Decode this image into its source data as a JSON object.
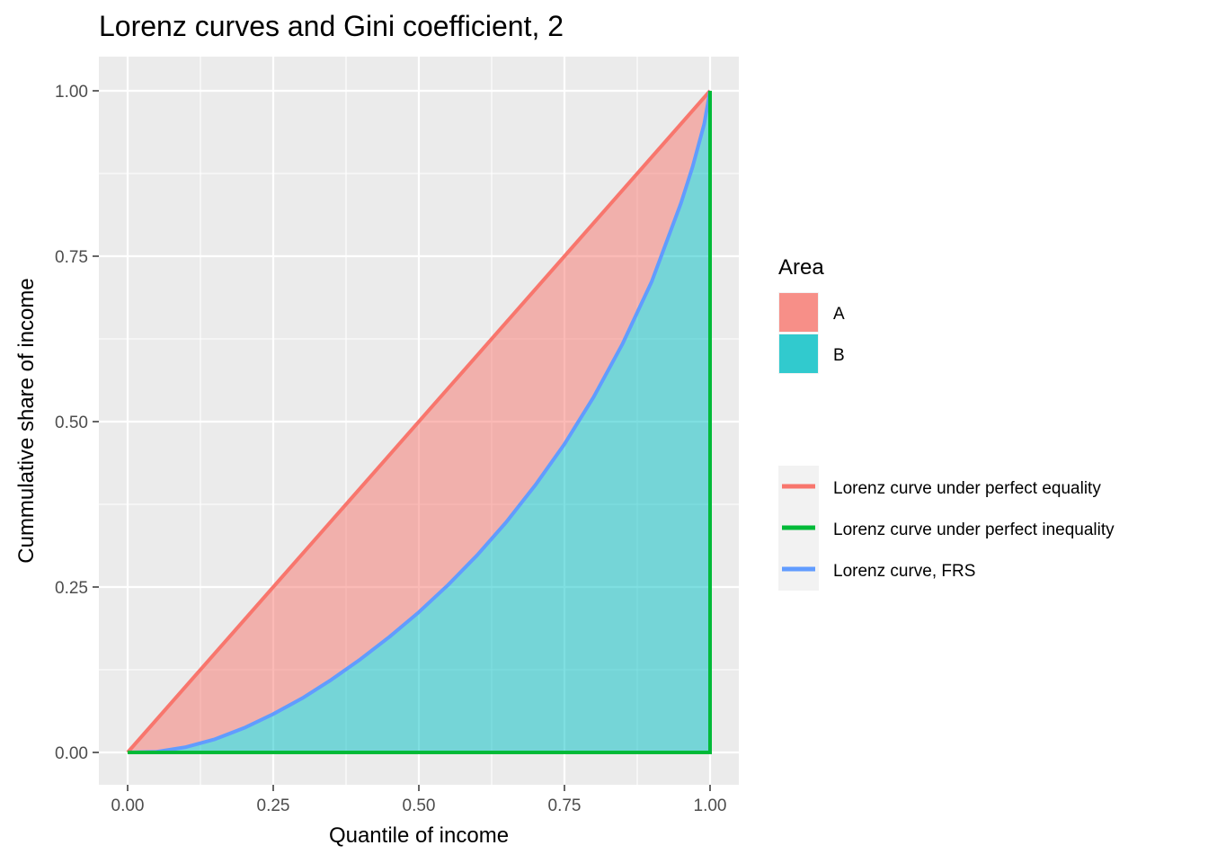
{
  "chart_data": {
    "type": "area",
    "title": "Lorenz curves and Gini coefficient, 2",
    "xlabel": "Quantile of income",
    "ylabel": "Cummulative share of income",
    "xlim": [
      0,
      1
    ],
    "ylim": [
      0,
      1
    ],
    "x_ticks": [
      "0.00",
      "0.25",
      "0.50",
      "0.75",
      "1.00"
    ],
    "y_ticks": [
      "0.00",
      "0.25",
      "0.50",
      "0.75",
      "1.00"
    ],
    "grid": true,
    "panel_background": "#ebebeb",
    "areas": {
      "title": "Area",
      "items": [
        {
          "name": "A",
          "color": "#f8766d"
        },
        {
          "name": "B",
          "color": "#00bfc4"
        }
      ]
    },
    "series": [
      {
        "name": "Lorenz curve under perfect equality",
        "color": "#f8766d",
        "x": [
          0,
          1
        ],
        "y": [
          0,
          1
        ]
      },
      {
        "name": "Lorenz curve under perfect inequality",
        "color": "#00ba38",
        "x": [
          0,
          1,
          1
        ],
        "y": [
          0,
          0,
          1
        ]
      },
      {
        "name": "Lorenz curve, FRS",
        "color": "#619cff",
        "x": [
          0,
          0.05,
          0.1,
          0.15,
          0.2,
          0.25,
          0.3,
          0.35,
          0.4,
          0.45,
          0.5,
          0.55,
          0.6,
          0.65,
          0.7,
          0.75,
          0.8,
          0.85,
          0.9,
          0.95,
          0.97,
          0.99,
          1
        ],
        "y": [
          0,
          0.001,
          0.008,
          0.02,
          0.037,
          0.058,
          0.082,
          0.11,
          0.141,
          0.175,
          0.212,
          0.253,
          0.298,
          0.348,
          0.404,
          0.466,
          0.537,
          0.618,
          0.712,
          0.83,
          0.885,
          0.95,
          1
        ]
      }
    ],
    "legend_position": "right"
  }
}
